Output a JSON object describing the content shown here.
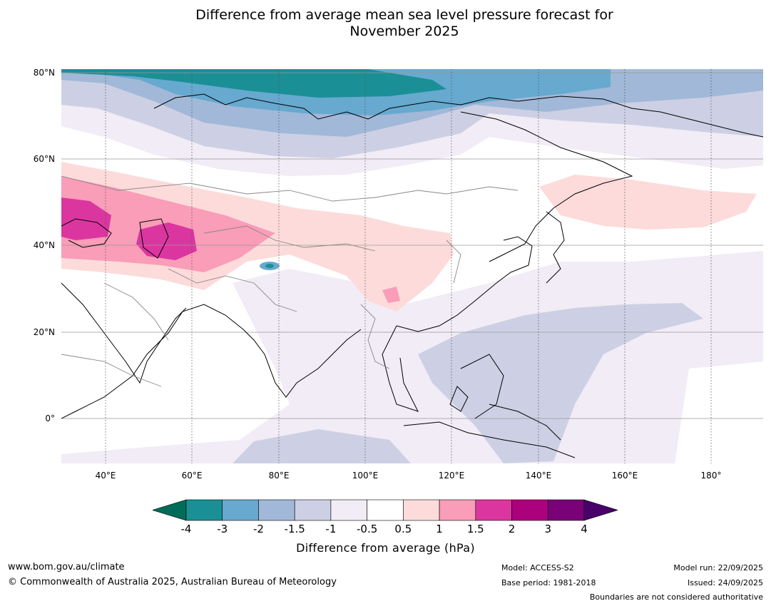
{
  "title_line1": "Difference from average mean sea level pressure forecast for",
  "title_line2": "November 2025",
  "map": {
    "lat_labels": [
      "80°N",
      "60°N",
      "40°N",
      "20°N",
      "0°"
    ],
    "lon_labels": [
      "40°E",
      "60°E",
      "80°E",
      "100°E",
      "120°E",
      "140°E",
      "160°E",
      "180°"
    ]
  },
  "colorbar": {
    "ticks": [
      "-4",
      "-3",
      "-2",
      "-1.5",
      "-1",
      "-0.5",
      "0.5",
      "1",
      "1.5",
      "2",
      "3",
      "4"
    ],
    "colors": [
      "#1b8f96",
      "#67a9cf",
      "#a1b8d8",
      "#cdd0e4",
      "#f1ecf5",
      "#ffffff",
      "#fddbdb",
      "#f99db8",
      "#db36a0",
      "#ac017d",
      "#7a0177"
    ],
    "under_color": "#016c59",
    "over_color": "#49006a",
    "label": "Difference from average (hPa)"
  },
  "footer": {
    "website": "www.bom.gov.au/climate",
    "copyright": "© Commonwealth of Australia 2025, Australian Bureau of Meteorology",
    "model": "Model: ACCESS-S2",
    "base_period": "Base period: 1981-2018",
    "model_run": "Model run: 22/09/2025",
    "issued": "Issued: 24/09/2025",
    "disclaimer": "Boundaries are not considered authoritative"
  }
}
